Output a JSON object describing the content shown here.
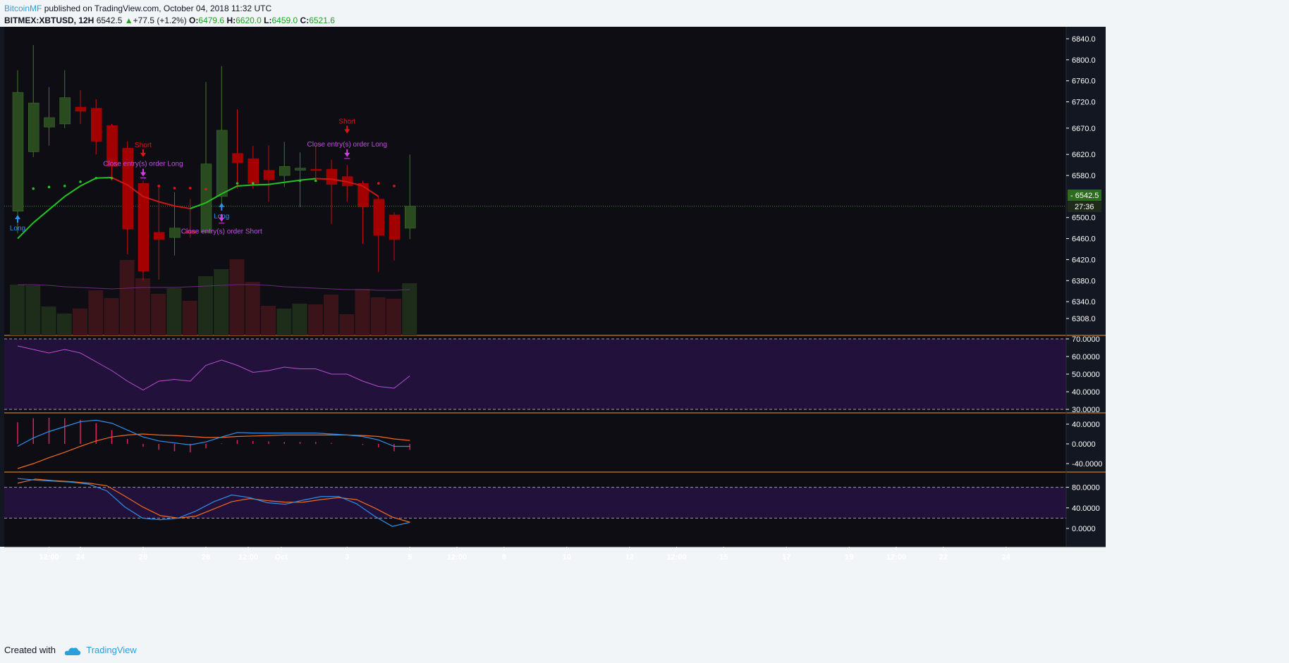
{
  "header": {
    "author": "BitcoinMF",
    "published_text": "published on TradingView.com, October 04, 2018 11:32 UTC",
    "symbol": "BITMEX:XBTUSD, 12H",
    "last": "6542.5",
    "change": "+77.5 (+1.2%)",
    "o_label": "O:",
    "o_value": "6479.6",
    "h_label": "H:",
    "h_value": "6620.0",
    "l_label": "L:",
    "l_value": "6459.0",
    "c_label": "C:",
    "c_value": "6521.6"
  },
  "footer": {
    "created_with": "Created with",
    "brand": "TradingView"
  },
  "colors": {
    "background": "#131722",
    "up_candle": "#2a4a1f",
    "down_candle": "#a30000",
    "volume_up": "#1e2d1a",
    "volume_down": "#3a1418",
    "rsi": "#b84fcf",
    "macd": "#2e8fe8",
    "signal": "#f06b1f",
    "histogram": "#e0205a",
    "axis_text": "#ffffff",
    "pane_border": "#f59a1f",
    "band_fill": "#22113a",
    "last_price_tag": "#2d6b1f"
  },
  "chart_data": {
    "type": "candlestick",
    "title": "BITMEX:XBTUSD, 12H",
    "price_axis": {
      "ticks": [
        "6840.0",
        "6800.0",
        "6760.0",
        "6720.0",
        "6670.0",
        "6620.0",
        "6580.0",
        "6500.0",
        "6460.0",
        "6420.0",
        "6380.0",
        "6340.0",
        "6308.0"
      ],
      "last_price_label": "6542.5",
      "countdown_label": "27:36"
    },
    "time_axis": {
      "ticks": [
        {
          "i": 2,
          "label": "12:00"
        },
        {
          "i": 4,
          "label": "24"
        },
        {
          "i": 8,
          "label": "26"
        },
        {
          "i": 12,
          "label": "28"
        },
        {
          "i": 14.7,
          "label": "12:00"
        },
        {
          "i": 16.8,
          "label": "Oct"
        },
        {
          "i": 21,
          "label": "3"
        },
        {
          "i": 25,
          "label": "5"
        },
        {
          "i": 28,
          "label": "12:00"
        },
        {
          "i": 31,
          "label": "8"
        },
        {
          "i": 35,
          "label": "10"
        },
        {
          "i": 39,
          "label": "12"
        },
        {
          "i": 42,
          "label": "12:00"
        },
        {
          "i": 45,
          "label": "15"
        },
        {
          "i": 49,
          "label": "17"
        },
        {
          "i": 53,
          "label": "19"
        },
        {
          "i": 56,
          "label": "12:00"
        },
        {
          "i": 59,
          "label": "22"
        },
        {
          "i": 63,
          "label": "24"
        }
      ]
    },
    "candles": [
      {
        "o": 6512,
        "h": 6780,
        "l": 6470,
        "c": 6738
      },
      {
        "o": 6625,
        "h": 6828,
        "l": 6615,
        "c": 6718
      },
      {
        "o": 6672,
        "h": 6748,
        "l": 6637,
        "c": 6690
      },
      {
        "o": 6678,
        "h": 6780,
        "l": 6670,
        "c": 6728
      },
      {
        "o": 6710,
        "h": 6742,
        "l": 6678,
        "c": 6702
      },
      {
        "o": 6708,
        "h": 6725,
        "l": 6620,
        "c": 6645
      },
      {
        "o": 6675,
        "h": 6678,
        "l": 6570,
        "c": 6597
      },
      {
        "o": 6632,
        "h": 6645,
        "l": 6430,
        "c": 6478
      },
      {
        "o": 6565,
        "h": 6570,
        "l": 6380,
        "c": 6398
      },
      {
        "o": 6472,
        "h": 6560,
        "l": 6382,
        "c": 6458
      },
      {
        "o": 6462,
        "h": 6548,
        "l": 6428,
        "c": 6480
      },
      {
        "o": 6475,
        "h": 6535,
        "l": 6462,
        "c": 6470
      },
      {
        "o": 6472,
        "h": 6758,
        "l": 6470,
        "c": 6602
      },
      {
        "o": 6540,
        "h": 6788,
        "l": 6515,
        "c": 6666
      },
      {
        "o": 6622,
        "h": 6706,
        "l": 6555,
        "c": 6604
      },
      {
        "o": 6612,
        "h": 6636,
        "l": 6555,
        "c": 6565
      },
      {
        "o": 6590,
        "h": 6637,
        "l": 6530,
        "c": 6572
      },
      {
        "o": 6580,
        "h": 6644,
        "l": 6558,
        "c": 6597
      },
      {
        "o": 6590,
        "h": 6624,
        "l": 6520,
        "c": 6594
      },
      {
        "o": 6592,
        "h": 6636,
        "l": 6570,
        "c": 6590
      },
      {
        "o": 6592,
        "h": 6610,
        "l": 6488,
        "c": 6563
      },
      {
        "o": 6578,
        "h": 6600,
        "l": 6530,
        "c": 6560
      },
      {
        "o": 6565,
        "h": 6570,
        "l": 6450,
        "c": 6520
      },
      {
        "o": 6535,
        "h": 6540,
        "l": 6396,
        "c": 6466
      },
      {
        "o": 6505,
        "h": 6510,
        "l": 6418,
        "c": 6458
      },
      {
        "o": 6479.6,
        "h": 6620,
        "l": 6459,
        "c": 6521.6
      }
    ],
    "sar": [
      {
        "i": 1,
        "v": 6555,
        "up": true
      },
      {
        "i": 2,
        "v": 6558,
        "up": true
      },
      {
        "i": 3,
        "v": 6560,
        "up": true
      },
      {
        "i": 4,
        "v": 6568,
        "up": true
      },
      {
        "i": 5,
        "v": 6575,
        "up": true
      },
      {
        "i": 6,
        "v": 6575,
        "up": true
      },
      {
        "i": 9,
        "v": 6560,
        "up": false
      },
      {
        "i": 10,
        "v": 6556,
        "up": false
      },
      {
        "i": 11,
        "v": 6556,
        "up": false
      },
      {
        "i": 12,
        "v": 6554,
        "up": false
      },
      {
        "i": 14,
        "v": 6565,
        "up": true
      },
      {
        "i": 15,
        "v": 6565,
        "up": true
      },
      {
        "i": 18,
        "v": 6570,
        "up": true
      },
      {
        "i": 19,
        "v": 6570,
        "up": true
      },
      {
        "i": 23,
        "v": 6565,
        "up": false
      },
      {
        "i": 24,
        "v": 6560,
        "up": false
      }
    ],
    "ma": [
      6460,
      6490,
      6515,
      6540,
      6560,
      6575,
      6576,
      6562,
      6540,
      6530,
      6522,
      6517,
      6528,
      6545,
      6560,
      6562,
      6563,
      6567,
      6571,
      6574,
      6573,
      6568,
      6560,
      6540,
      null,
      null
    ],
    "signals": [
      {
        "i": 0,
        "type": "long",
        "label": "Long",
        "price": 6505
      },
      {
        "i": 13,
        "type": "long",
        "label": "Long",
        "price": 6528
      },
      {
        "i": 8,
        "type": "short",
        "label": "Short",
        "price": 6615
      },
      {
        "i": 21,
        "type": "short",
        "label": "Short",
        "price": 6660
      },
      {
        "i": 8,
        "type": "close",
        "label": "Close entry(s) order Long",
        "price": 6578
      },
      {
        "i": 21,
        "type": "close",
        "label": "Close entry(s) order Long",
        "price": 6615
      },
      {
        "i": 13,
        "type": "close",
        "label": "Close entry(s) order Short",
        "price": 6492
      }
    ],
    "volume": [
      72,
      71,
      41,
      31,
      38,
      64,
      53,
      107,
      81,
      59,
      67,
      49,
      84,
      94,
      108,
      76,
      42,
      38,
      45,
      44,
      58,
      30,
      66,
      54,
      52,
      74
    ],
    "volume_ma": [
      72,
      72,
      71,
      69,
      68,
      67,
      66,
      67,
      68,
      68,
      68,
      69,
      70,
      71,
      72,
      72,
      71,
      69,
      68,
      67,
      66,
      65,
      65,
      64,
      64,
      65
    ],
    "rsi": {
      "ticks": [
        "70.0000",
        "60.0000",
        "50.0000",
        "40.0000",
        "30.0000"
      ],
      "upper": 70,
      "lower": 30,
      "values": [
        66,
        64,
        62,
        64,
        62,
        57,
        52,
        46,
        41,
        46,
        47,
        46,
        55,
        58,
        55,
        51,
        52,
        54,
        53,
        53,
        50,
        50,
        46,
        43,
        42,
        49
      ]
    },
    "macd": {
      "ticks": [
        "40.0000",
        "0.0000",
        "-40.0000"
      ],
      "macd": [
        -5,
        12,
        25,
        35,
        45,
        48,
        42,
        28,
        14,
        6,
        2,
        -2,
        4,
        14,
        23,
        22,
        22,
        22,
        22,
        22,
        20,
        18,
        15,
        8,
        -5,
        -5
      ],
      "signal": [
        -50,
        -40,
        -28,
        -17,
        -5,
        6,
        14,
        18,
        20,
        18,
        17,
        15,
        13,
        13,
        15,
        16,
        17,
        18,
        18,
        18,
        18,
        18,
        17,
        15,
        10,
        7
      ],
      "hist": [
        44,
        52,
        53,
        52,
        49,
        42,
        28,
        10,
        -6,
        -12,
        -15,
        -17,
        -9,
        1,
        8,
        6,
        5,
        4,
        4,
        4,
        2,
        0,
        -2,
        -7,
        -15,
        -12
      ]
    },
    "stoch": {
      "ticks": [
        "80.0000",
        "40.0000",
        "0.0000"
      ],
      "upper": 80,
      "lower": 20,
      "k": [
        97,
        94,
        92,
        90,
        86,
        73,
        42,
        20,
        17,
        20,
        34,
        52,
        65,
        60,
        50,
        47,
        55,
        62,
        62,
        48,
        24,
        4,
        12
      ],
      "d": [
        88,
        96,
        93,
        91,
        88,
        83,
        63,
        42,
        25,
        20,
        24,
        38,
        52,
        58,
        54,
        51,
        51,
        56,
        60,
        56,
        40,
        22,
        12
      ]
    }
  }
}
